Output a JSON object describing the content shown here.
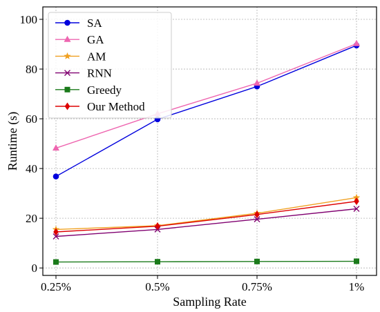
{
  "chart_data": {
    "type": "line",
    "title": "",
    "xlabel": "Sampling Rate",
    "ylabel": "Runtime (s)",
    "categories": [
      "0.25%",
      "0.5%",
      "0.75%",
      "1%"
    ],
    "ylim": [
      -3,
      105
    ],
    "yticks": [
      0,
      20,
      40,
      60,
      80,
      100
    ],
    "grid": true,
    "legend_position": "top-left",
    "series": [
      {
        "name": "SA",
        "color": "#0000dd",
        "marker": "circle",
        "values": [
          36.8,
          59.8,
          73.0,
          89.5
        ]
      },
      {
        "name": "GA",
        "color": "#ee66b0",
        "marker": "triangle",
        "values": [
          48.2,
          62.0,
          74.3,
          90.2
        ]
      },
      {
        "name": "AM",
        "color": "#f0a020",
        "marker": "star",
        "values": [
          15.5,
          17.0,
          22.0,
          28.3
        ]
      },
      {
        "name": "RNN",
        "color": "#800070",
        "marker": "x",
        "values": [
          12.7,
          15.5,
          19.6,
          23.8
        ]
      },
      {
        "name": "Greedy",
        "color": "#1a7a1a",
        "marker": "square",
        "values": [
          2.4,
          2.5,
          2.6,
          2.7
        ]
      },
      {
        "name": "Our Method",
        "color": "#dd0000",
        "marker": "diamond",
        "values": [
          14.5,
          16.8,
          21.5,
          26.8
        ]
      }
    ]
  }
}
